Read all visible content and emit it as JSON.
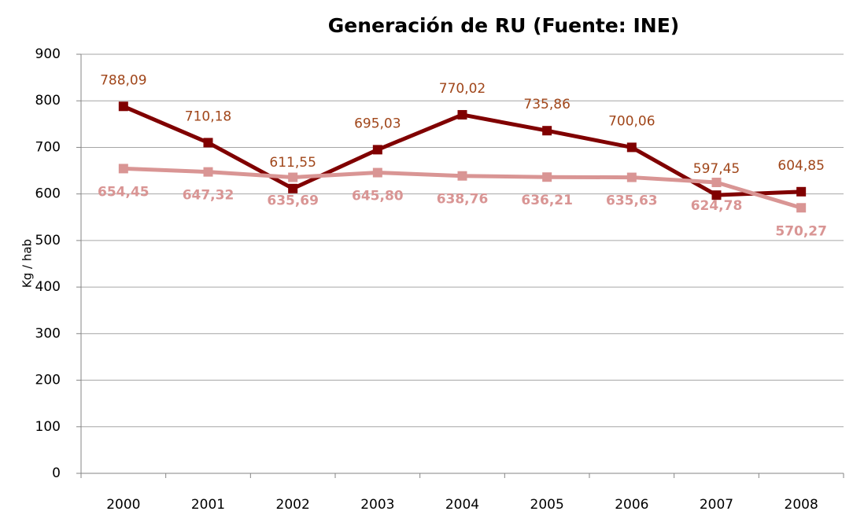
{
  "chart_data": {
    "type": "line",
    "title": "Generación de RU (Fuente: INE)",
    "y_label": "Kg / hab",
    "categories": [
      "2000",
      "2001",
      "2002",
      "2003",
      "2004",
      "2005",
      "2006",
      "2007",
      "2008"
    ],
    "series": [
      {
        "color": "#800000",
        "label_color": "#a0461a",
        "values": [
          788.09,
          710.18,
          611.55,
          695.03,
          770.02,
          735.86,
          700.06,
          597.45,
          604.85
        ],
        "value_labels": [
          "788,09",
          "710,18",
          "611,55",
          "695,03",
          "770,02",
          "735,86",
          "700,06",
          "597,45",
          "604,85"
        ]
      },
      {
        "color": "#d99594",
        "label_color": "#d99594",
        "values": [
          654.45,
          647.32,
          635.69,
          645.8,
          638.76,
          636.21,
          635.63,
          624.78,
          570.27
        ],
        "value_labels": [
          "654,45",
          "647,32",
          "635,69",
          "645,80",
          "638,76",
          "636,21",
          "635,63",
          "624,78",
          "570,27"
        ]
      }
    ],
    "ylim": [
      0,
      900
    ],
    "yticks": [
      0,
      100,
      200,
      300,
      400,
      500,
      600,
      700,
      800,
      900
    ],
    "grid": true
  }
}
